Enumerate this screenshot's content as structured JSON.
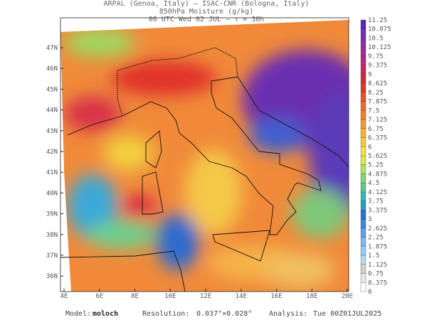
{
  "header": {
    "line1": "ARPAL (Genoa, Italy)  –  ISAC-CNR (Bologna, Italy)",
    "line2": "850hPa Moisture (g/kg)",
    "line3": "06 UTC Wed 02 JUL  –  τ = 30h"
  },
  "map": {
    "lat_labels": [
      "47N",
      "46N",
      "45N",
      "44N",
      "43N",
      "42N",
      "41N",
      "40N",
      "39N",
      "38N",
      "37N",
      "36N"
    ],
    "lon_labels": [
      "4E",
      "6E",
      "8E",
      "10E",
      "12E",
      "14E",
      "16E",
      "18E",
      "20E"
    ]
  },
  "colorbar": {
    "labels": [
      0,
      0.375,
      0.75,
      1.125,
      1.5,
      1.875,
      2.25,
      2.625,
      3,
      3.375,
      3.75,
      4.125,
      4.5,
      4.875,
      5.25,
      5.625,
      6,
      6.375,
      6.75,
      7.125,
      7.5,
      7.875,
      8.25,
      8.625,
      9,
      9.375,
      9.75,
      10.125,
      10.5,
      10.875,
      11.25
    ]
  },
  "footer": {
    "model_label": "Model:",
    "model": "moloch",
    "resolution_label": "Resolution:",
    "resolution": "0.037°×0.028°",
    "analysis_label": "Analysis:",
    "analysis": "Tue 00Z01JUL2025"
  }
}
